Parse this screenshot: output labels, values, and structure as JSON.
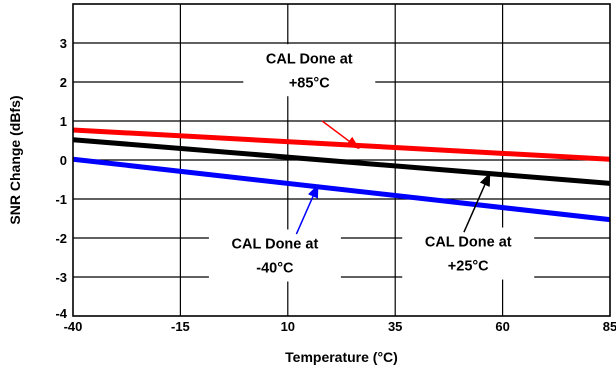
{
  "chart_data": {
    "type": "line",
    "title": "",
    "xlabel": "Temperature (°C)",
    "ylabel": "SNR Change (dBfs)",
    "xlim": [
      -40,
      85
    ],
    "ylim": [
      -4,
      4
    ],
    "grid": true,
    "x_ticks": [
      -40,
      -15,
      10,
      35,
      60,
      85
    ],
    "x_tick_labels": [
      "-40",
      "-15",
      "10",
      "35",
      "60",
      "85"
    ],
    "y_ticks": [
      3,
      2,
      1,
      0,
      -1,
      -2,
      -3,
      -4
    ],
    "y_tick_labels": [
      "3",
      "2",
      "1",
      "0",
      "-1",
      "-2",
      "-3",
      "-4"
    ],
    "series": [
      {
        "name": "CAL Done at +85°C",
        "color": "#ff0000",
        "x": [
          -40,
          85
        ],
        "y": [
          0.77,
          0.02
        ]
      },
      {
        "name": "CAL Done at +25°C",
        "color": "#000000",
        "x": [
          -40,
          85
        ],
        "y": [
          0.52,
          -0.6
        ]
      },
      {
        "name": "CAL Done at -40°C",
        "color": "#0000ff",
        "x": [
          -40,
          85
        ],
        "y": [
          0.02,
          -1.53
        ]
      }
    ],
    "annotations": [
      {
        "line1": "CAL Done at",
        "line2": "+85°C",
        "series": "CAL Done at +85°C",
        "color": "#ff0000",
        "text_x": 15,
        "text_y": 2.25,
        "arrow_from": [
          18,
          1.0
        ],
        "arrow_to": [
          26.5,
          0.3
        ]
      },
      {
        "line1": "CAL Done at",
        "line2": "-40°C",
        "series": "CAL Done at -40°C",
        "color": "#0000ff",
        "text_x": 7,
        "text_y": -2.5,
        "arrow_from": [
          12,
          -1.9
        ],
        "arrow_to": [
          17,
          -0.65
        ]
      },
      {
        "line1": "CAL Done at",
        "line2": "+25°C",
        "series": "CAL Done at +25°C",
        "color": "#000000",
        "text_x": 52,
        "text_y": -2.45,
        "arrow_from": [
          51,
          -1.85
        ],
        "arrow_to": [
          57,
          -0.35
        ]
      }
    ]
  }
}
